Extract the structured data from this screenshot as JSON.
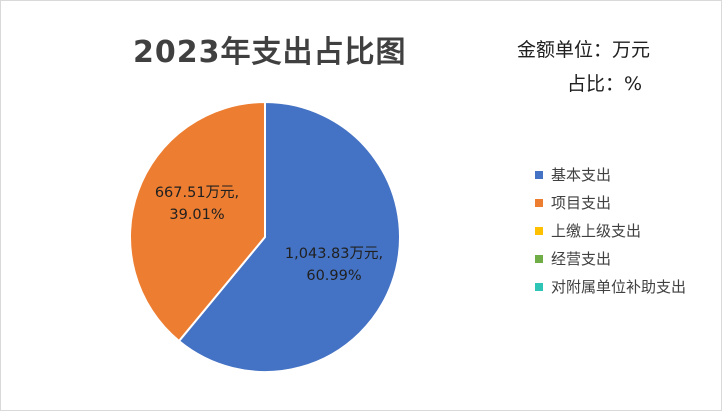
{
  "chart_data": {
    "type": "pie",
    "title": "2023年支出占比图",
    "unit_lines": [
      "金额单位：万元",
      "占比：%"
    ],
    "legend_position": "right",
    "slices": [
      {
        "name": "基本支出",
        "value": 1043.83,
        "percent": 60.99,
        "color": "#4472C4",
        "label_line1": "1,043.83万元,",
        "label_line2": "60.99%"
      },
      {
        "name": "项目支出",
        "value": 667.51,
        "percent": 39.01,
        "color": "#ED7D31",
        "label_line1": "667.51万元,",
        "label_line2": "39.01%"
      }
    ],
    "legend": [
      {
        "name": "基本支出",
        "color": "#4472C4"
      },
      {
        "name": "项目支出",
        "color": "#ED7D31"
      },
      {
        "name": "上缴上级支出",
        "color": "#FFC000"
      },
      {
        "name": "经营支出",
        "color": "#70AD47"
      },
      {
        "name": "对附属单位补助支出",
        "color": "#2EC4B6"
      }
    ]
  }
}
